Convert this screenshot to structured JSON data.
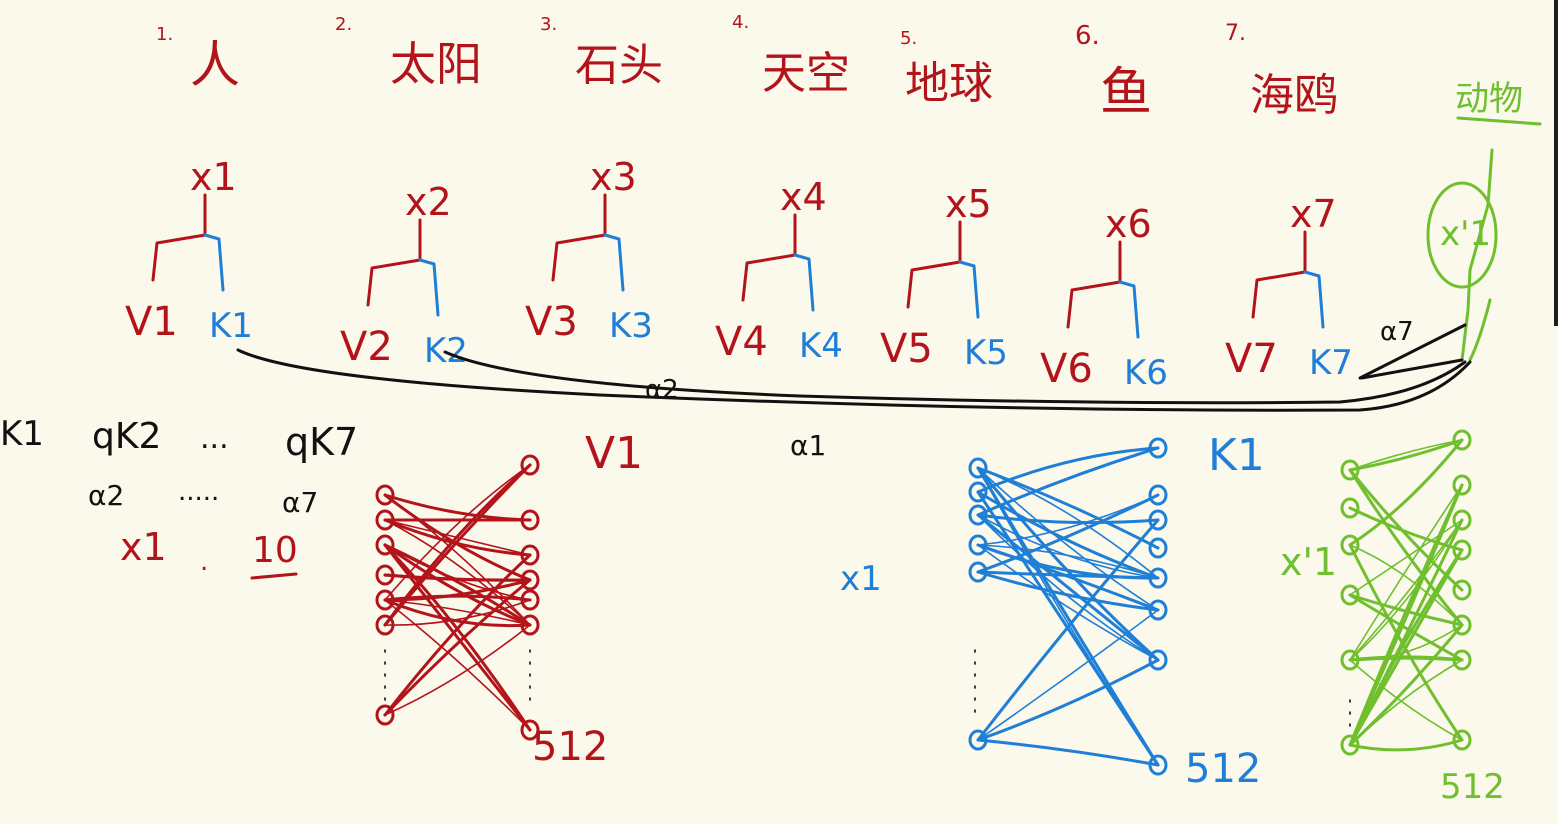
{
  "colors": {
    "background": "#fbf8ec",
    "red": "#b3141b",
    "blue": "#1f7fd6",
    "green": "#6fbf2e",
    "black": "#111111"
  },
  "words": [
    {
      "num": "1.",
      "text": "人"
    },
    {
      "num": "2.",
      "text": "太阳"
    },
    {
      "num": "3.",
      "text": "石头"
    },
    {
      "num": "4.",
      "text": "天空"
    },
    {
      "num": "5.",
      "text": "地球"
    },
    {
      "num": "6.",
      "text": "鱼"
    },
    {
      "num": "7.",
      "text": "海鸥"
    }
  ],
  "corner_word": "动物",
  "tokens": [
    {
      "x": "x1",
      "v": "V1",
      "k": "K1"
    },
    {
      "x": "x2",
      "v": "V2",
      "k": "K2"
    },
    {
      "x": "x3",
      "v": "V3",
      "k": "K3"
    },
    {
      "x": "x4",
      "v": "V4",
      "k": "K4"
    },
    {
      "x": "x5",
      "v": "V5",
      "k": "K5"
    },
    {
      "x": "x6",
      "v": "V6",
      "k": "K6"
    },
    {
      "x": "x7",
      "v": "V7",
      "k": "K7"
    }
  ],
  "green_token": "x'1",
  "alpha_labels": {
    "a7": "α7",
    "a2": "α2",
    "a1": "α1"
  },
  "left_notes": {
    "k1": "K1",
    "qk2": "qK2",
    "dots1": "...",
    "qk7": "qK7",
    "a2": "α2",
    "dots2": ".....",
    "a7": "α7",
    "x1": "x1",
    "dot": ".",
    "ten": "10"
  },
  "mid_labels": {
    "v1": "V1",
    "k1": "K1",
    "x1_blue": "x1",
    "x1_green": "x'1"
  },
  "network_labels": {
    "red_out": "512",
    "blue_out": "512",
    "green_out": "512"
  }
}
